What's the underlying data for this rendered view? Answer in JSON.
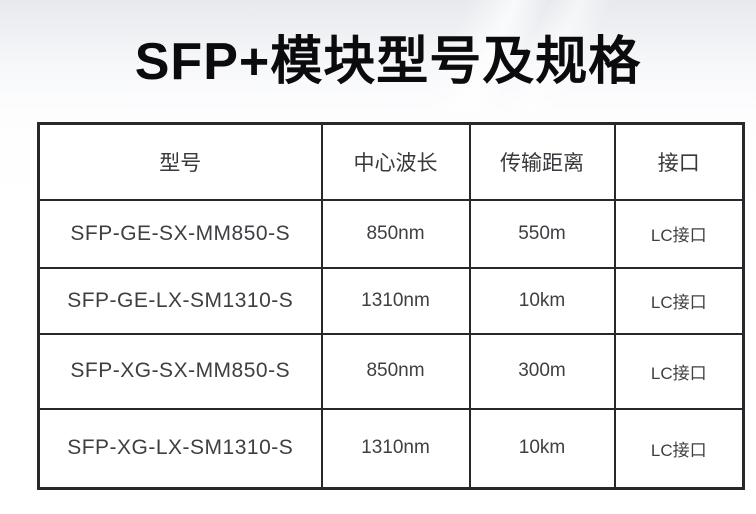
{
  "title": "SFP+模块型号及规格",
  "table": {
    "headers": [
      "型号",
      "中心波长",
      "传输距离",
      "接口"
    ],
    "rows": [
      {
        "model": "SFP-GE-SX-MM850-S",
        "wavelength": "850nm",
        "distance": "550m",
        "interface": "LC接口"
      },
      {
        "model": "SFP-GE-LX-SM1310-S",
        "wavelength": "1310nm",
        "distance": "10km",
        "interface": "LC接口"
      },
      {
        "model": "SFP-XG-SX-MM850-S",
        "wavelength": "850nm",
        "distance": "300m",
        "interface": "LC接口"
      },
      {
        "model": "SFP-XG-LX-SM1310-S",
        "wavelength": "1310nm",
        "distance": "10km",
        "interface": "LC接口"
      }
    ]
  },
  "colors": {
    "title_text": "#0b0b0d",
    "table_text": "#3d3f42",
    "table_border": "#26282b",
    "background_top": "#e7e9ed",
    "background_bottom": "#ffffff"
  }
}
